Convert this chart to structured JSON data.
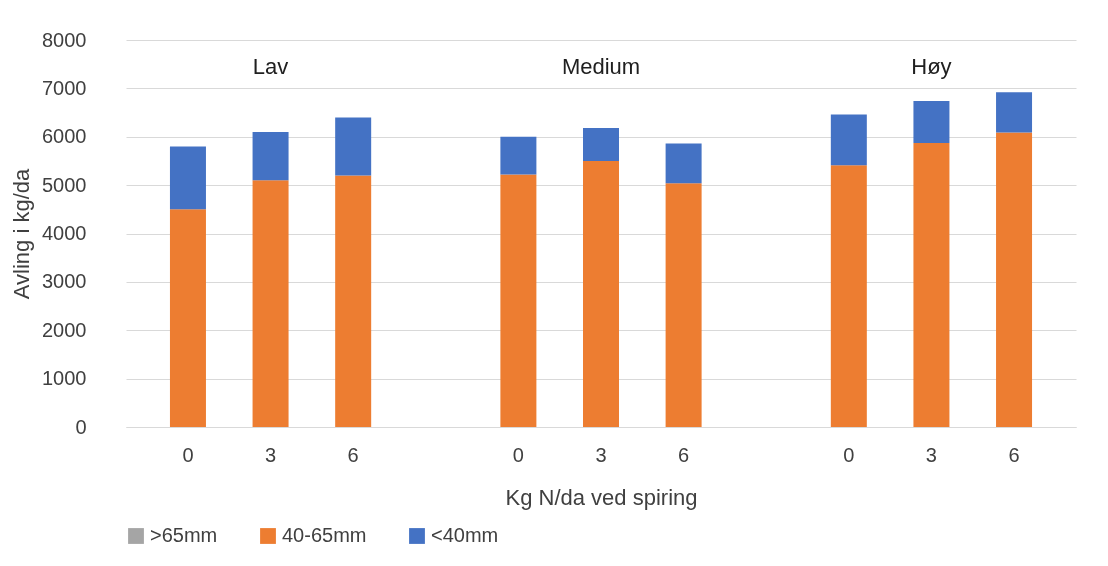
{
  "chart_data": {
    "type": "bar",
    "stacked": true,
    "categories": [
      "0",
      "3",
      "6",
      null,
      "0",
      "3",
      "6",
      null,
      "0",
      "3",
      "6"
    ],
    "series": [
      {
        "name": ">65mm",
        "color": "#a5a5a5",
        "values": [
          null,
          null,
          null,
          null,
          null,
          null,
          null,
          null,
          null,
          null,
          null
        ]
      },
      {
        "name": "40-65mm",
        "color": "#ed7d31",
        "values": [
          4500,
          5100,
          5200,
          null,
          5220,
          5500,
          5040,
          null,
          5410,
          5870,
          6090
        ]
      },
      {
        "name": "<40mm",
        "color": "#4472c4",
        "values": [
          1300,
          1000,
          1200,
          null,
          780,
          680,
          820,
          null,
          1050,
          870,
          830
        ]
      }
    ],
    "xlabel": "Kg N/da ved spiring",
    "ylabel": "Avling i kg/da",
    "ylim": [
      0,
      8000
    ],
    "yticks": [
      0,
      1000,
      2000,
      3000,
      4000,
      5000,
      6000,
      7000,
      8000
    ],
    "grid": "y",
    "legend": "bottom",
    "annotations": [
      "Lav",
      "Medium",
      "Høy"
    ]
  }
}
